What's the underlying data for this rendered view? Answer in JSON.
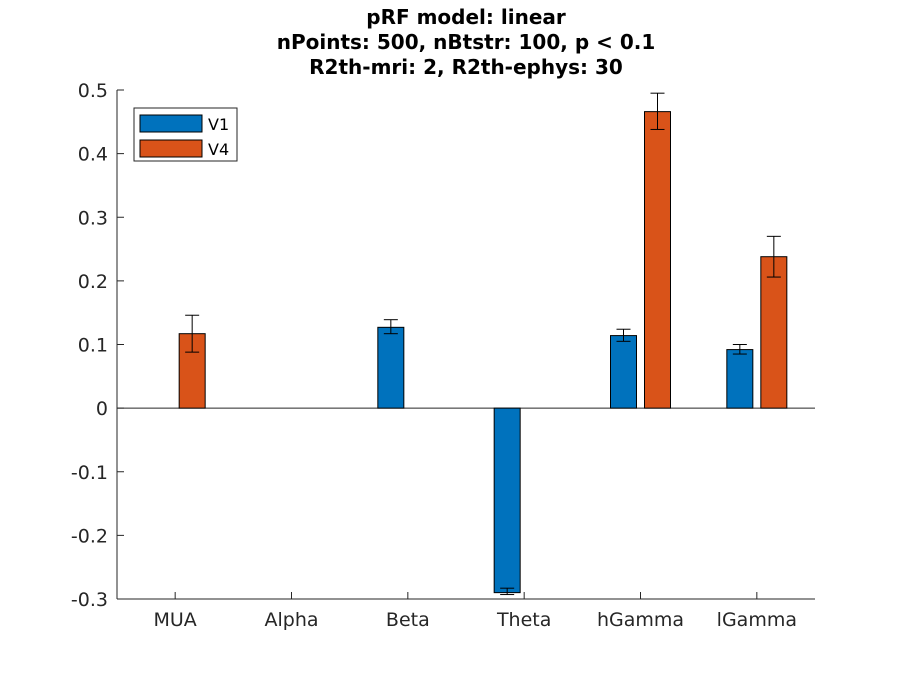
{
  "chart_data": {
    "type": "bar",
    "title_lines": [
      "pRF model: linear",
      "nPoints: 500, nBtstr: 100, p < 0.1",
      "R2th-mri: 2, R2th-ephys: 30"
    ],
    "categories": [
      "MUA",
      "Alpha",
      "Beta",
      "Theta",
      "hGamma",
      "lGamma"
    ],
    "ylim": [
      -0.3,
      0.5
    ],
    "yticks": [
      "-0.3",
      "-0.2",
      "-0.1",
      "0",
      "0.1",
      "0.2",
      "0.3",
      "0.4",
      "0.5"
    ],
    "ytick_values": [
      -0.3,
      -0.2,
      -0.1,
      0,
      0.1,
      0.2,
      0.3,
      0.4,
      0.5
    ],
    "grid": false,
    "legend_position": "top-left",
    "series": [
      {
        "name": "V1",
        "color": "#0072BD",
        "values": [
          null,
          null,
          0.127,
          -0.29,
          0.114,
          0.092
        ],
        "err_low": [
          null,
          null,
          0.117,
          -0.293,
          0.105,
          0.085
        ],
        "err_high": [
          null,
          null,
          0.139,
          -0.283,
          0.124,
          0.1
        ]
      },
      {
        "name": "V4",
        "color": "#D95319",
        "values": [
          0.117,
          null,
          null,
          null,
          0.466,
          0.238
        ],
        "err_low": [
          0.088,
          null,
          null,
          null,
          0.438,
          0.206
        ],
        "err_high": [
          0.146,
          null,
          null,
          null,
          0.495,
          0.27
        ]
      }
    ]
  }
}
